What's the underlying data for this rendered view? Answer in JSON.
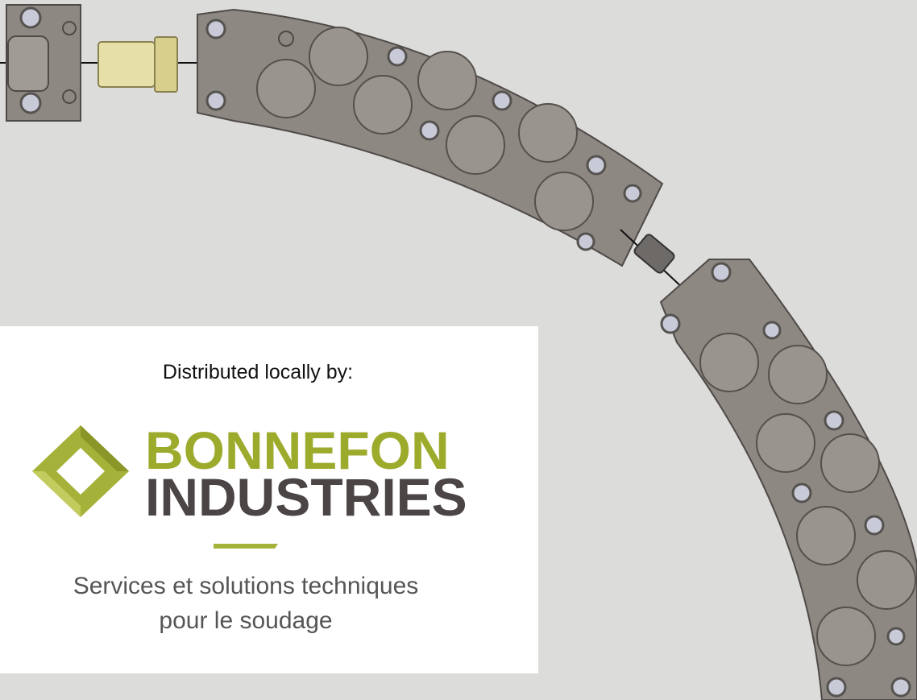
{
  "card": {
    "intro": "Distributed locally by:",
    "brand_line_1": "BONNEFON",
    "brand_line_2": "INDUSTRIES",
    "tagline": [
      "Services et solutions techniques",
      "pour le soudage"
    ]
  }
}
